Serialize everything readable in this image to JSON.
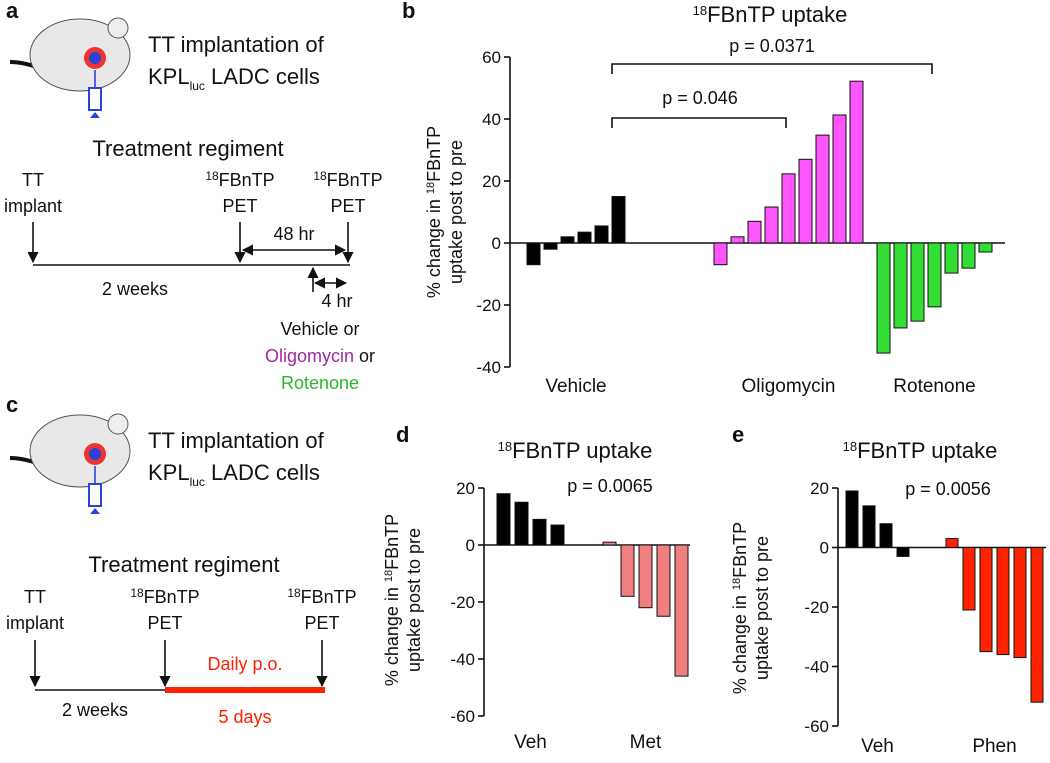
{
  "panel_labels": [
    "a",
    "b",
    "c",
    "d",
    "e"
  ],
  "diagram_a": {
    "heading": "TT implantation of",
    "cells": [
      "KPL",
      "luc",
      " LADC cells"
    ],
    "regimen": "Treatment regiment",
    "tt": [
      "TT",
      "implant"
    ],
    "pet1": [
      "18",
      "FBnTP",
      "PET"
    ],
    "pet2": [
      "18",
      "FBnTP",
      "PET"
    ],
    "interval": "48 hr",
    "weeks": "2 weeks",
    "dose_time": "4 hr",
    "treatments": [
      "Vehicle or",
      "Oligomycin",
      " or",
      "Rotenone"
    ]
  },
  "diagram_c": {
    "heading": "TT implantation of",
    "cells": [
      "KPL",
      "luc",
      " LADC cells"
    ],
    "regimen": "Treatment regiment",
    "tt": [
      "TT",
      "implant"
    ],
    "pet1": [
      "18",
      "FBnTP",
      "PET"
    ],
    "pet2": [
      "18",
      "FBnTP",
      "PET"
    ],
    "dosing": "Daily p.o.",
    "weeks": "2 weeks",
    "days": "5 days"
  },
  "chart_data": [
    {
      "type": "bar",
      "title": [
        "18",
        "FBnTP uptake"
      ],
      "ylabel": [
        "% change in ",
        "18",
        "FBnTP",
        "uptake post to pre"
      ],
      "ylim": [
        -40,
        60
      ],
      "yticks": [
        -40,
        -20,
        0,
        20,
        40,
        60
      ],
      "series": [
        {
          "name": "Vehicle",
          "color": "#000000",
          "label_color": "#111111",
          "values": [
            -7,
            -2,
            2,
            3.5,
            5.5,
            15
          ]
        },
        {
          "name": "Oligomycin",
          "color": "#ff55ff",
          "label_color": "#9b2aa0",
          "values": [
            -7,
            2,
            7,
            11.6,
            22.3,
            27,
            34.8,
            41.3,
            52.2
          ]
        },
        {
          "name": "Rotenone",
          "color": "#33dd33",
          "label_color": "#2db52d",
          "values": [
            -35.5,
            -27.4,
            -25.2,
            -20.6,
            -9.7,
            -8.1,
            -2.9
          ]
        }
      ],
      "annotations": [
        "p = 0.0371",
        "p = 0.046"
      ]
    },
    {
      "type": "bar",
      "title": [
        "18",
        "FBnTP uptake"
      ],
      "ylabel": [
        "% change in ",
        "18",
        "FBnTP",
        "uptake post to pre"
      ],
      "ylim": [
        -60,
        20
      ],
      "yticks": [
        -60,
        -40,
        -20,
        0,
        20
      ],
      "series": [
        {
          "name": "Veh",
          "color": "#000000",
          "label_color": "#111111",
          "values": [
            18,
            15,
            9,
            7
          ]
        },
        {
          "name": "Met",
          "color": "#f08080",
          "label_color": "#b5403c",
          "values": [
            1,
            -18,
            -22,
            -25,
            -46
          ]
        }
      ],
      "annotations": [
        "p = 0.0065"
      ]
    },
    {
      "type": "bar",
      "title": [
        "18",
        "FBnTP uptake"
      ],
      "ylabel": [
        "% change in ",
        "18",
        "FBnTP",
        "uptake post to pre"
      ],
      "ylim": [
        -60,
        20
      ],
      "yticks": [
        -60,
        -40,
        -20,
        0,
        20
      ],
      "series": [
        {
          "name": "Veh",
          "color": "#000000",
          "label_color": "#111111",
          "values": [
            19,
            14,
            8,
            -3
          ]
        },
        {
          "name": "Phen",
          "color": "#ff2200",
          "label_color": "#ff3300",
          "values": [
            3,
            -21,
            -35,
            -36,
            -37,
            -52
          ]
        }
      ],
      "annotations": [
        "p = 0.0056"
      ]
    }
  ]
}
